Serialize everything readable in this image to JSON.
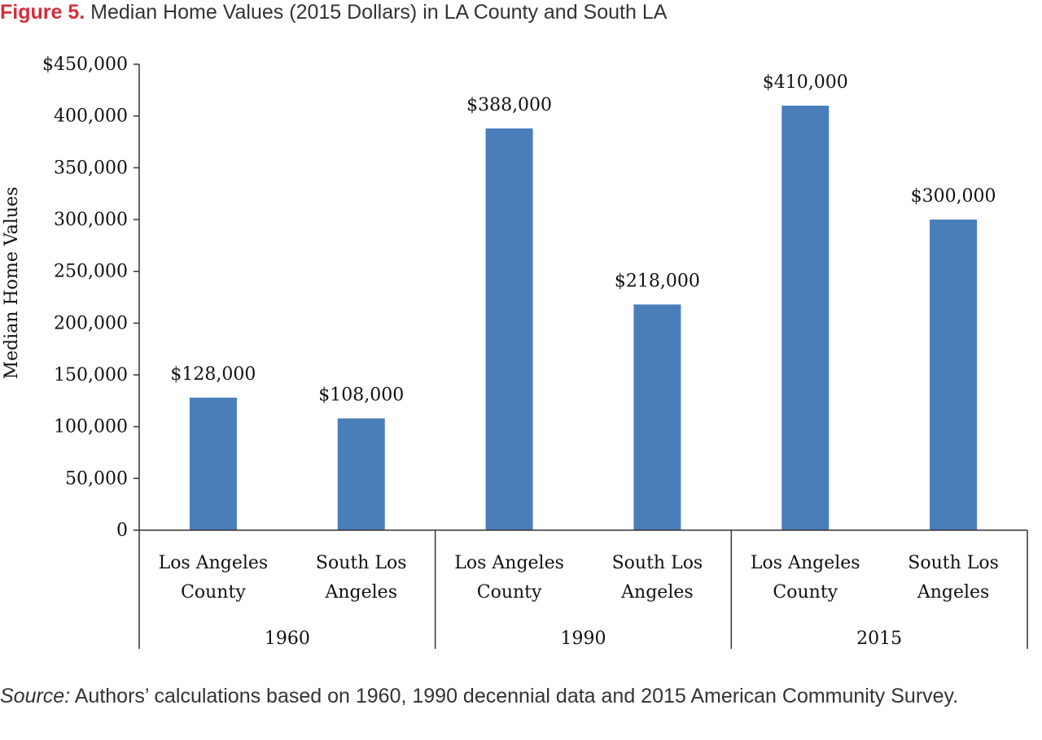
{
  "figure": {
    "label": "Figure 5.",
    "title": "Median Home Values (2015 Dollars) in LA County and South LA"
  },
  "source": {
    "label": "Source:",
    "text": "Authors’ calculations based on 1960, 1990 decennial data and 2015 American Community Survey."
  },
  "chart_data": {
    "type": "bar",
    "title": "Median Home Values (2015 Dollars) in LA County and South LA",
    "ylabel": "Median Home Values",
    "xlabel": "",
    "ylim": [
      0,
      450000
    ],
    "yticks": [
      0,
      50000,
      100000,
      150000,
      200000,
      250000,
      300000,
      350000,
      400000,
      450000
    ],
    "ytick_labels": [
      "0",
      "50,000",
      "100,000",
      "150,000",
      "200,000",
      "250,000",
      "300,000",
      "350,000",
      "400,000",
      "$450,000"
    ],
    "grid": false,
    "legend": "none",
    "bar_color": "#4a7ebb",
    "groups": [
      {
        "name": "1960",
        "bars": [
          {
            "category": [
              "Los Angeles",
              "County"
            ],
            "value": 128000,
            "label": "$128,000"
          },
          {
            "category": [
              "South Los",
              "Angeles"
            ],
            "value": 108000,
            "label": "$108,000"
          }
        ]
      },
      {
        "name": "1990",
        "bars": [
          {
            "category": [
              "Los Angeles",
              "County"
            ],
            "value": 388000,
            "label": "$388,000"
          },
          {
            "category": [
              "South Los",
              "Angeles"
            ],
            "value": 218000,
            "label": "$218,000"
          }
        ]
      },
      {
        "name": "2015",
        "bars": [
          {
            "category": [
              "Los Angeles",
              "County"
            ],
            "value": 410000,
            "label": "$410,000"
          },
          {
            "category": [
              "South Los",
              "Angeles"
            ],
            "value": 300000,
            "label": "$300,000"
          }
        ]
      }
    ]
  }
}
